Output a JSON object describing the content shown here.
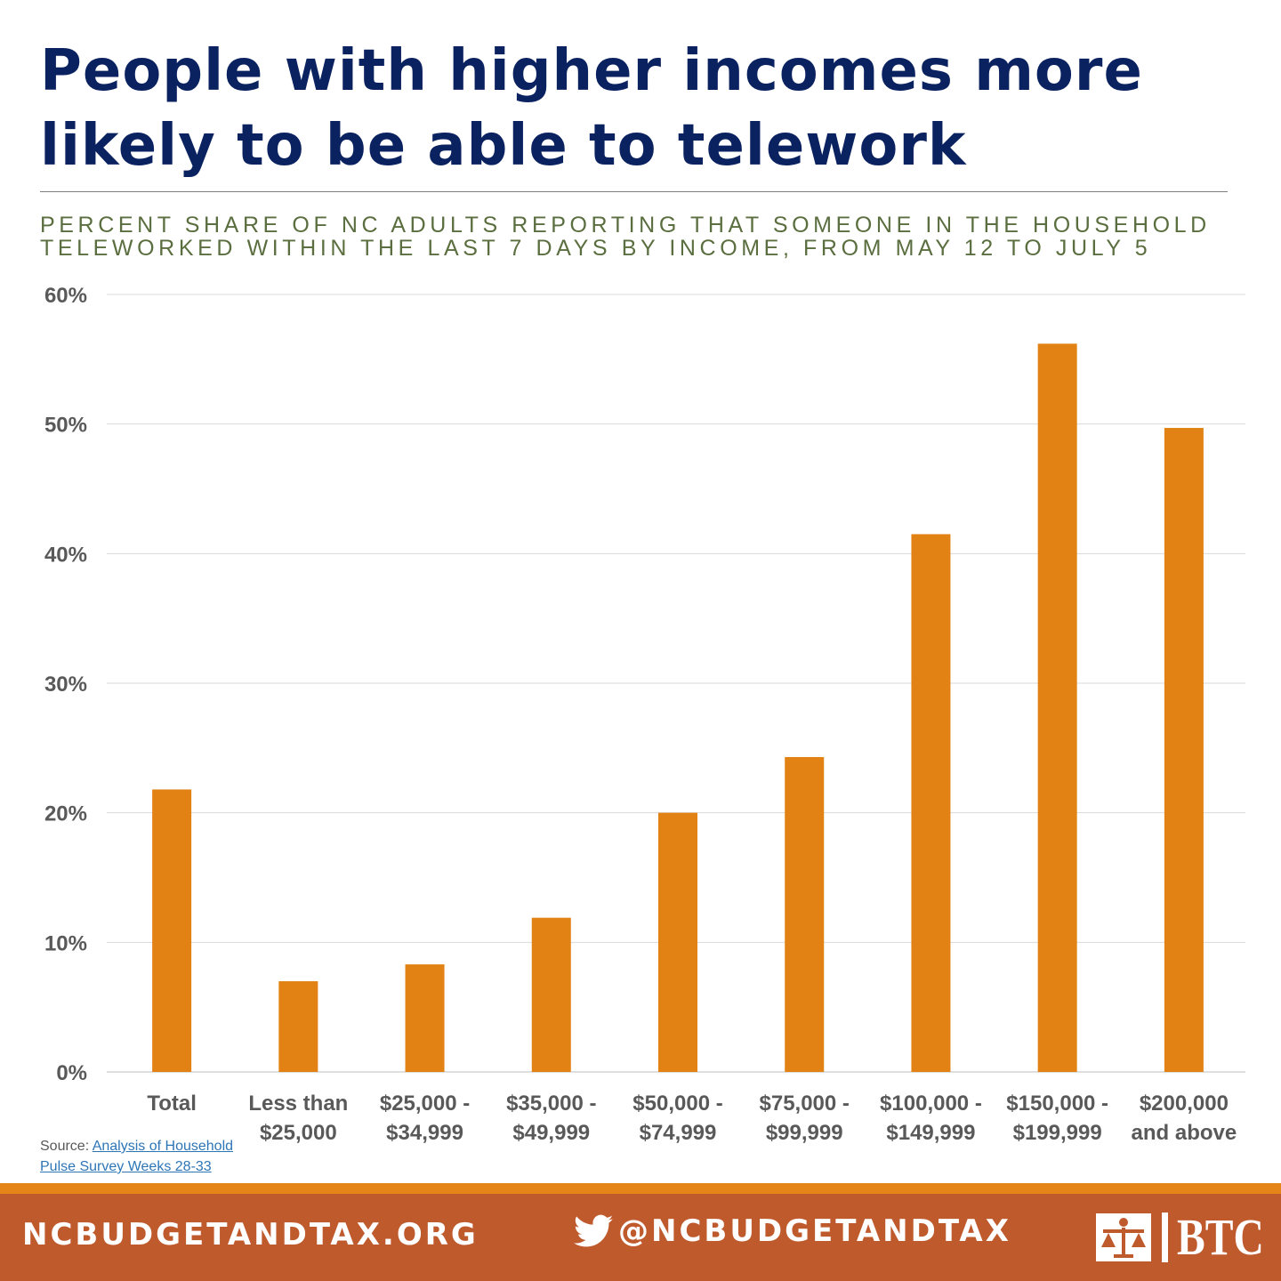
{
  "title": "People with higher incomes more likely to be able to telework",
  "subtitle": "Percent share of NC adults reporting that someone in the household teleworked within the last 7 days by income, from May 12 to July 5",
  "colors": {
    "title": "#0b2260",
    "subtitle": "#5b6e3f",
    "bar": "#e28214",
    "footer": "#bf5a2d",
    "footer_accent": "#e58417"
  },
  "source": {
    "prefix": "Source:",
    "link_text": "Analysis of Household Pulse Survey Weeks 28-33"
  },
  "footer": {
    "url": "NCBUDGETANDTAX.ORG",
    "twitter_handle": "@NCBUDGETANDTAX",
    "logo_text": "BTC",
    "icons": [
      "twitter-icon",
      "scales-of-justice-icon"
    ]
  },
  "chart_data": {
    "type": "bar",
    "categories": [
      [
        "Total"
      ],
      [
        "Less than",
        "$25,000"
      ],
      [
        "$25,000 -",
        "$34,999"
      ],
      [
        "$35,000 -",
        "$49,999"
      ],
      [
        "$50,000 -",
        "$74,999"
      ],
      [
        "$75,000 -",
        "$99,999"
      ],
      [
        "$100,000 -",
        "$149,999"
      ],
      [
        "$150,000 -",
        "$199,999"
      ],
      [
        "$200,000",
        "and above"
      ]
    ],
    "values": [
      21.8,
      7.0,
      8.3,
      11.9,
      20.0,
      24.3,
      41.5,
      56.2,
      49.7
    ],
    "ylim": [
      0,
      60
    ],
    "yticks": [
      "0%",
      "10%",
      "20%",
      "30%",
      "40%",
      "50%",
      "60%"
    ],
    "grid": true,
    "legend": "none"
  }
}
